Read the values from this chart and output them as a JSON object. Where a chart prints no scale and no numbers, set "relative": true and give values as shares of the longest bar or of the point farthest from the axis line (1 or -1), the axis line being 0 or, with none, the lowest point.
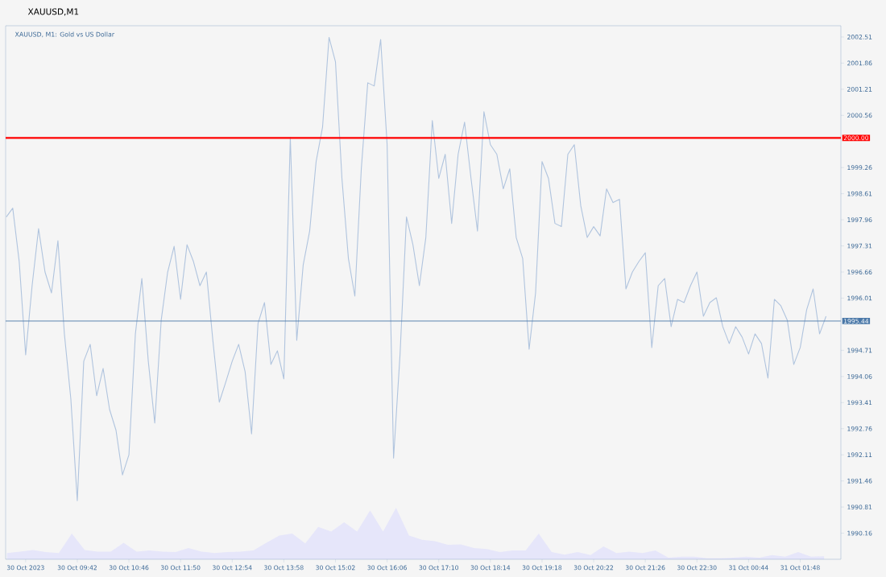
{
  "chart_data": [
    {
      "type": "line",
      "title": "XAUUSD,M1",
      "subtitle": "XAUUSD, M1: Gold vs US Dollar",
      "categories": [
        null,
        null,
        null,
        "30 Oct 2023",
        null,
        null,
        null,
        null,
        null,
        null,
        null,
        "30 Oct 09:42",
        null,
        null,
        null,
        null,
        null,
        null,
        null,
        "30 Oct 10:46",
        null,
        null,
        null,
        null,
        null,
        null,
        null,
        "30 Oct 11:50",
        null,
        null,
        null,
        null,
        null,
        null,
        null,
        "30 Oct 12:54",
        null,
        null,
        null,
        null,
        null,
        null,
        null,
        "30 Oct 13:58",
        null,
        null,
        null,
        null,
        null,
        null,
        null,
        "30 Oct 15:02",
        null,
        null,
        null,
        null,
        null,
        null,
        null,
        "30 Oct 16:06",
        null,
        null,
        null,
        null,
        null,
        null,
        null,
        "30 Oct 17:10",
        null,
        null,
        null,
        null,
        null,
        null,
        null,
        "30 Oct 18:14",
        null,
        null,
        null,
        null,
        null,
        null,
        null,
        "30 Oct 19:18",
        null,
        null,
        null,
        null,
        null,
        null,
        null,
        "30 Oct 20:22",
        null,
        null,
        null,
        null,
        null,
        null,
        null,
        "30 Oct 21:26",
        null,
        null,
        null,
        null,
        null,
        null,
        null,
        "30 Oct 22:30",
        null,
        null,
        null,
        null,
        null,
        null,
        null,
        "31 Oct 00:44",
        null,
        null,
        null,
        null,
        null,
        null,
        null,
        "31 Oct 01:48",
        null,
        null,
        null,
        null,
        null,
        null
      ],
      "series": [
        {
          "color": "#b0c4de",
          "values": [
            1998.03,
            1998.25,
            1996.92,
            1994.6,
            1996.32,
            1997.74,
            1996.66,
            1996.14,
            1997.44,
            1995.12,
            1993.5,
            1990.97,
            1994.44,
            1994.86,
            1993.58,
            1994.26,
            1993.24,
            1992.72,
            1991.61,
            1992.11,
            1995.12,
            1996.5,
            1994.44,
            1992.9,
            1995.46,
            1996.66,
            1997.3,
            1995.98,
            1997.34,
            1996.92,
            1996.32,
            1996.66,
            1994.96,
            1993.42,
            1993.92,
            1994.44,
            1994.86,
            1994.18,
            1992.63,
            1995.38,
            1995.9,
            1994.36,
            1994.7,
            1994.0,
            2000.01,
            1994.96,
            1996.84,
            1997.68,
            1999.41,
            2000.27,
            2002.5,
            2001.89,
            1998.99,
            1997.0,
            1996.06,
            1999.23,
            2001.37,
            2001.29,
            2002.45,
            1999.83,
            1992.03,
            1994.6,
            1998.03,
            1997.34,
            1996.32,
            1997.52,
            2000.43,
            1998.99,
            1999.59,
            1997.87,
            1999.59,
            2000.39,
            1998.99,
            1997.68,
            2000.65,
            1999.83,
            1999.59,
            1998.73,
            1999.23,
            1997.52,
            1997.0,
            1994.74,
            1996.14,
            1999.41,
            1998.99,
            1997.87,
            1997.79,
            1999.59,
            1999.83,
            1998.31,
            1997.52,
            1997.79,
            1997.56,
            1998.73,
            1998.39,
            1998.47,
            1996.24,
            1996.66,
            1996.92,
            1997.14,
            1994.78,
            1996.32,
            1996.5,
            1995.3,
            1995.98,
            1995.9,
            1996.32,
            1996.66,
            1995.56,
            1995.9,
            1996.02,
            1995.3,
            1994.88,
            1995.3,
            1995.04,
            1994.62,
            1995.12,
            1994.88,
            1994.02,
            1995.98,
            1995.82,
            1995.46,
            1994.36,
            1994.78,
            1995.72,
            1996.24,
            1995.12,
            1995.56,
            null,
            null
          ]
        }
      ],
      "ylim": [
        1989.51,
        2002.79
      ],
      "yticks": [
        2002.51,
        2001.86,
        2001.21,
        2000.56,
        1999.26,
        1998.61,
        1997.96,
        1997.31,
        1996.66,
        1996.01,
        1994.71,
        1994.06,
        1993.41,
        1992.76,
        1992.11,
        1991.46,
        1990.81,
        1990.16
      ],
      "ref_lines": [
        {
          "axis": "y",
          "value": 2000,
          "label": "2000.00",
          "color": "#ff0000"
        },
        {
          "axis": "y",
          "value": 1995.44,
          "label": "1995.44",
          "color": "#4a78a8"
        }
      ]
    },
    {
      "type": "area",
      "relative": true,
      "color": "#e6e6fa",
      "tick_labels": false,
      "categories": [
        null,
        null,
        null,
        null,
        null,
        null,
        null,
        null,
        null,
        null,
        null,
        null,
        null,
        null,
        null,
        null,
        null,
        null,
        null,
        null,
        null,
        null,
        null,
        null,
        null,
        null,
        null,
        null,
        null,
        null,
        null,
        null,
        null,
        null,
        null,
        null,
        null,
        null,
        null,
        null,
        null,
        null,
        null,
        null,
        null,
        null,
        null,
        null,
        null,
        null,
        null,
        null,
        null,
        null,
        null,
        null,
        null,
        null,
        null,
        null,
        null,
        null,
        null,
        null,
        null
      ],
      "values": [
        0.12,
        0.15,
        0.18,
        0.14,
        0.12,
        0.5,
        0.18,
        0.15,
        0.15,
        0.32,
        0.15,
        0.17,
        0.15,
        0.14,
        0.22,
        0.15,
        0.12,
        0.14,
        0.15,
        0.17,
        0.32,
        0.46,
        0.5,
        0.31,
        0.63,
        0.54,
        0.72,
        0.54,
        0.95,
        0.54,
        1,
        0.46,
        0.38,
        0.35,
        0.28,
        0.29,
        0.22,
        0.2,
        0.14,
        0.17,
        0.17,
        0.5,
        0.14,
        0.09,
        0.14,
        0.08,
        0.25,
        0.12,
        0.15,
        0.12,
        0.17,
        0.03,
        0.05,
        0.05,
        0.02,
        0.02,
        0.03,
        0.05,
        0.03,
        0.08,
        0.05,
        0.14,
        0.05,
        0.06,
        null
      ]
    }
  ]
}
